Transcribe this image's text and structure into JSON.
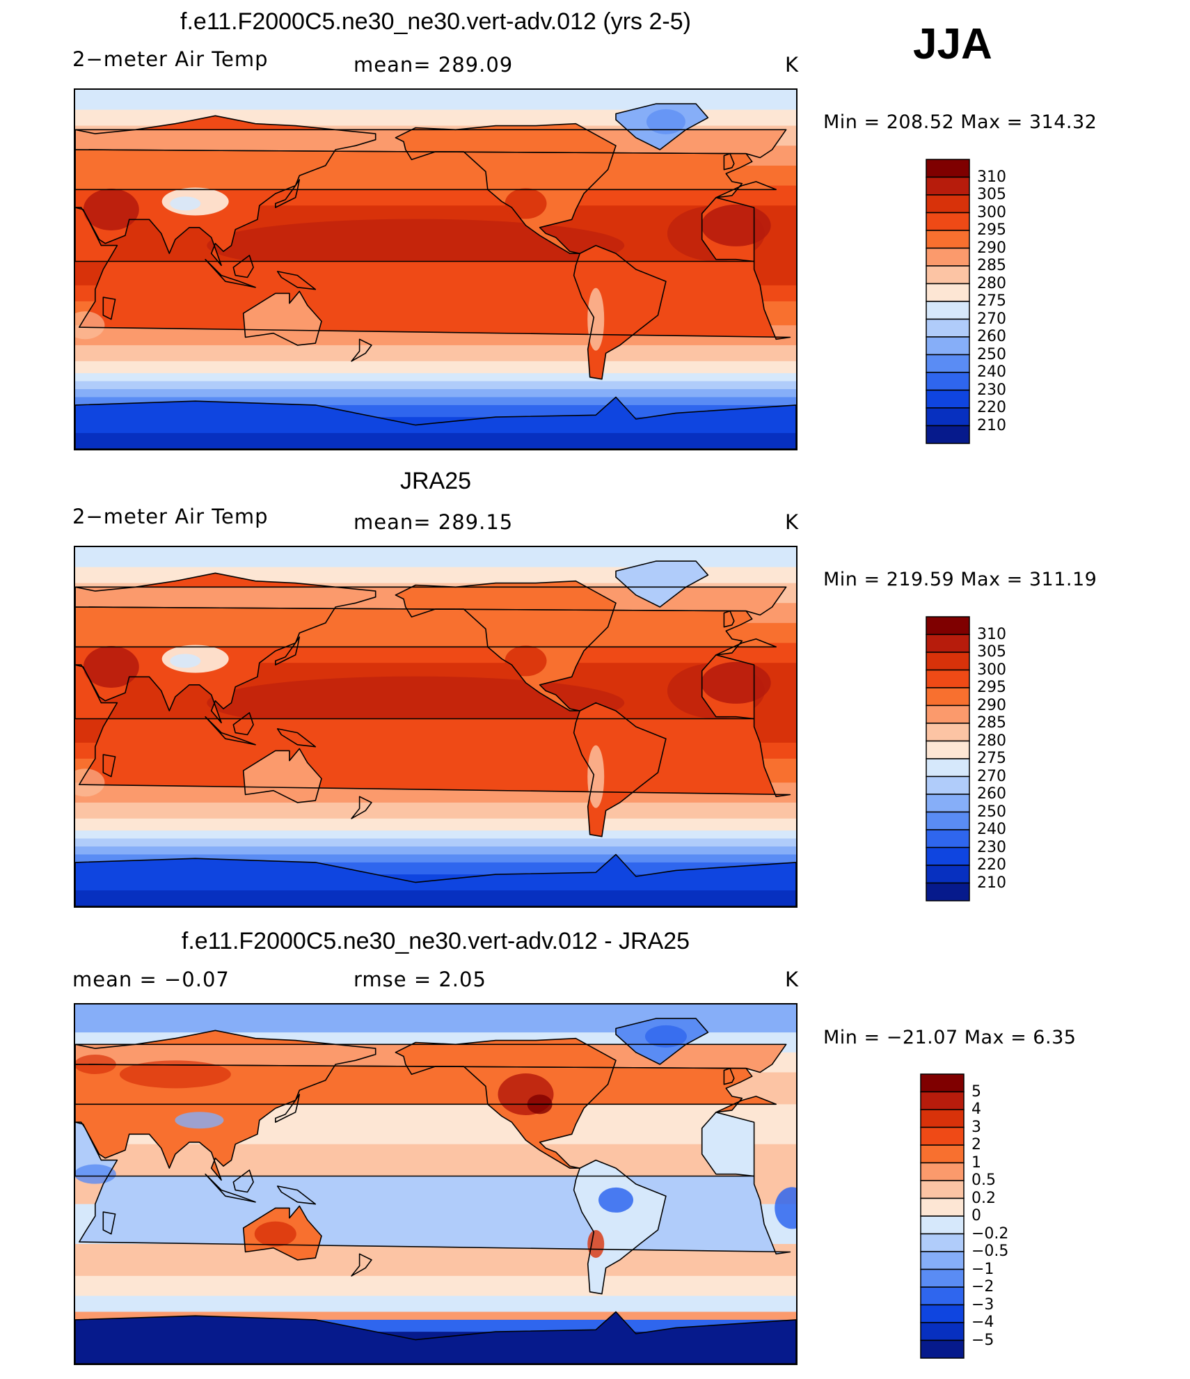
{
  "season": "JJA",
  "panels": [
    {
      "title": "f.e11.F2000C5.ne30_ne30.vert-adv.012 (yrs 2-5)",
      "left_label": "2−meter Air Temp",
      "center_label": "mean=  289.09",
      "units": "K",
      "minmax": "Min  =  208.52  Max  =  314.32",
      "colorbar_labels": [
        "310",
        "305",
        "300",
        "295",
        "290",
        "285",
        "280",
        "275",
        "270",
        "260",
        "250",
        "240",
        "230",
        "220",
        "210"
      ],
      "colorbar_colors": [
        "#7f0000",
        "#b71c0c",
        "#d8320a",
        "#ef4a16",
        "#f8702f",
        "#fb9a6c",
        "#fcc4a4",
        "#fde6d4",
        "#d6e8fb",
        "#b0ccfa",
        "#86aef8",
        "#5a8cf4",
        "#2f66ee",
        "#0f45e0",
        "#0730c0",
        "#061a8c"
      ],
      "map_kind": "model"
    },
    {
      "title": "JRA25",
      "left_label": "2−meter Air Temp",
      "center_label": "mean=  289.15",
      "units": "K",
      "minmax": "Min  =  219.59  Max  =  311.19",
      "colorbar_labels": [
        "310",
        "305",
        "300",
        "295",
        "290",
        "285",
        "280",
        "275",
        "270",
        "260",
        "250",
        "240",
        "230",
        "220",
        "210"
      ],
      "colorbar_colors": [
        "#7f0000",
        "#b71c0c",
        "#d8320a",
        "#ef4a16",
        "#f8702f",
        "#fb9a6c",
        "#fcc4a4",
        "#fde6d4",
        "#d6e8fb",
        "#b0ccfa",
        "#86aef8",
        "#5a8cf4",
        "#2f66ee",
        "#0f45e0",
        "#0730c0",
        "#061a8c"
      ],
      "map_kind": "obs"
    },
    {
      "title": "f.e11.F2000C5.ne30_ne30.vert-adv.012 - JRA25",
      "left_label": "mean =    −0.07",
      "center_label": "rmse =     2.05",
      "units": "K",
      "minmax": "Min  =  −21.07  Max  =     6.35",
      "colorbar_labels": [
        "5",
        "4",
        "3",
        "2",
        "1",
        "0.5",
        "0.2",
        "0",
        "−0.2",
        "−0.5",
        "−1",
        "−2",
        "−3",
        "−4",
        "−5"
      ],
      "colorbar_colors": [
        "#7f0000",
        "#b71c0c",
        "#d8320a",
        "#ef4a16",
        "#f8702f",
        "#fb9a6c",
        "#fcc4a4",
        "#fde6d4",
        "#d6e8fb",
        "#b0ccfa",
        "#86aef8",
        "#5a8cf4",
        "#2f66ee",
        "#0f45e0",
        "#0730c0",
        "#061a8c"
      ],
      "map_kind": "diff"
    }
  ]
}
